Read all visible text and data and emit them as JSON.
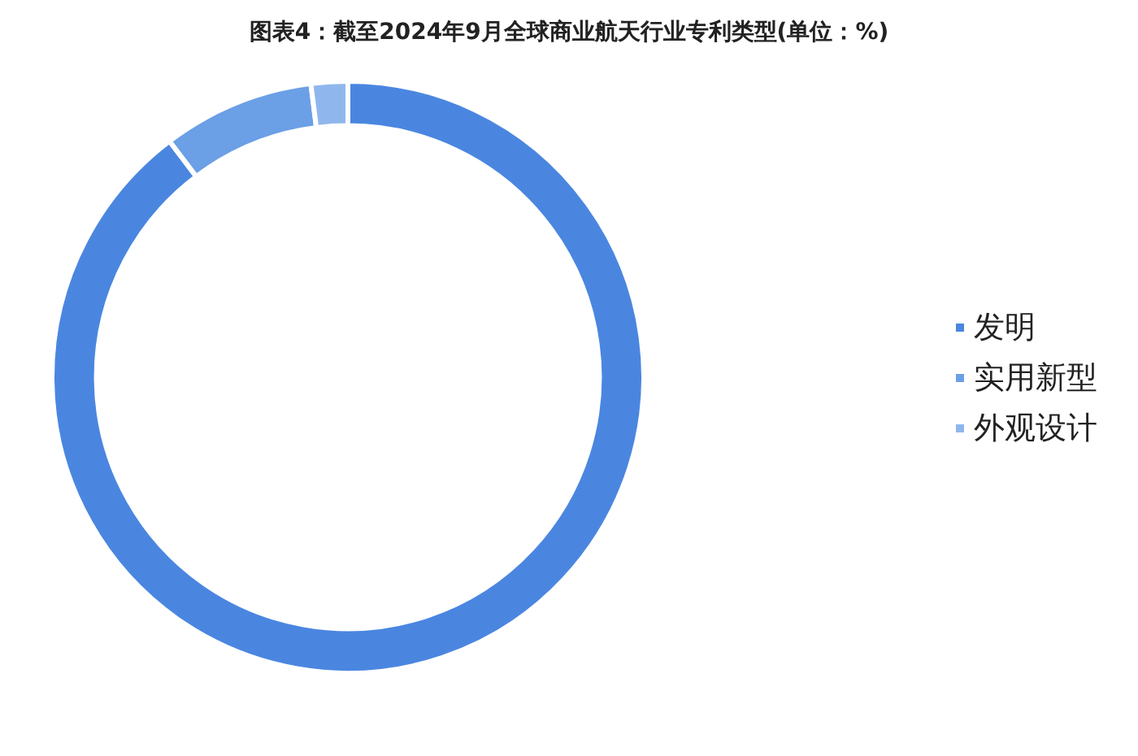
{
  "chart_data": {
    "type": "donut",
    "title": "图表4：截至2024年9月全球商业航天行业专利类型(单位：%)",
    "categories": [
      "发明",
      "实用新型",
      "外观设计"
    ],
    "values": [
      89.7,
      8.3,
      2.0
    ],
    "colors": [
      "#4a86e0",
      "#6b9fe6",
      "#8fb7ee"
    ],
    "legend": "right"
  }
}
